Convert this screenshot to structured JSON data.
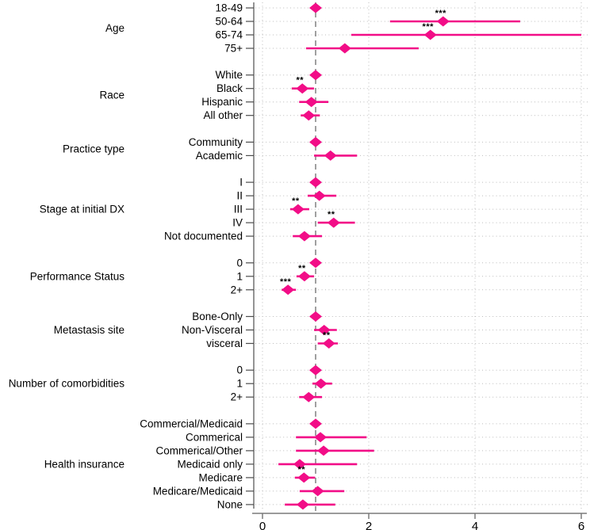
{
  "chart_data": {
    "type": "forest",
    "title": "",
    "xlabel": "",
    "ylabel": "",
    "x_ticks": [
      0,
      2,
      4,
      6
    ],
    "x_range": [
      0,
      6
    ],
    "reference_line_x": 1,
    "legend": "none",
    "grid": "dotted horizontal per row; dotted vertical at 0,2,4,6",
    "marker": "diamond with horizontal CI line",
    "colors": {
      "marker": "#F20D87",
      "reference_dash": "#8f8f8f",
      "grid_dots": "#bcbcbc",
      "axis": "#7a7a7a",
      "category_axis": "#4d4d4d",
      "text": "#000000"
    },
    "groups": [
      {
        "label": "Age",
        "rows": [
          {
            "label": "18-49",
            "est": 1.0,
            "lo": null,
            "hi": null,
            "sig": "",
            "reference": true
          },
          {
            "label": "50-64",
            "est": 3.4,
            "lo": 2.4,
            "hi": 4.85,
            "sig": "***"
          },
          {
            "label": "65-74",
            "est": 3.16,
            "lo": 1.67,
            "hi": 6.0,
            "sig": "***",
            "hi_clipped_at_axis_max": true
          },
          {
            "label": "75+",
            "est": 1.55,
            "lo": 0.82,
            "hi": 2.94,
            "sig": ""
          }
        ]
      },
      {
        "label": "Race",
        "rows": [
          {
            "label": "White",
            "est": 1.0,
            "lo": null,
            "hi": null,
            "sig": "",
            "reference": true
          },
          {
            "label": "Black",
            "est": 0.75,
            "lo": 0.55,
            "hi": 0.97,
            "sig": "**"
          },
          {
            "label": "Hispanic",
            "est": 0.92,
            "lo": 0.69,
            "hi": 1.24,
            "sig": ""
          },
          {
            "label": "All other",
            "est": 0.87,
            "lo": 0.72,
            "hi": 1.08,
            "sig": ""
          }
        ]
      },
      {
        "label": "Practice type",
        "rows": [
          {
            "label": "Community",
            "est": 1.0,
            "lo": null,
            "hi": null,
            "sig": "",
            "reference": true
          },
          {
            "label": "Academic",
            "est": 1.28,
            "lo": 0.97,
            "hi": 1.78,
            "sig": ""
          }
        ]
      },
      {
        "label": "Stage at initial DX",
        "rows": [
          {
            "label": "I",
            "est": 1.0,
            "lo": null,
            "hi": null,
            "sig": "",
            "reference": true
          },
          {
            "label": "II",
            "est": 1.07,
            "lo": 0.85,
            "hi": 1.39,
            "sig": ""
          },
          {
            "label": "III",
            "est": 0.67,
            "lo": 0.52,
            "hi": 0.88,
            "sig": "**"
          },
          {
            "label": "IV",
            "est": 1.34,
            "lo": 1.04,
            "hi": 1.74,
            "sig": "**"
          },
          {
            "label": "Not documented",
            "est": 0.79,
            "lo": 0.57,
            "hi": 1.12,
            "sig": ""
          }
        ]
      },
      {
        "label": "Performance Status",
        "rows": [
          {
            "label": "0",
            "est": 1.0,
            "lo": null,
            "hi": null,
            "sig": "",
            "reference": true
          },
          {
            "label": "1",
            "est": 0.79,
            "lo": 0.64,
            "hi": 0.97,
            "sig": "**"
          },
          {
            "label": "2+",
            "est": 0.48,
            "lo": 0.36,
            "hi": 0.63,
            "sig": "***"
          }
        ]
      },
      {
        "label": "Metastasis site",
        "rows": [
          {
            "label": "Bone-Only",
            "est": 1.0,
            "lo": null,
            "hi": null,
            "sig": "",
            "reference": true
          },
          {
            "label": "Non-Visceral",
            "est": 1.16,
            "lo": 0.97,
            "hi": 1.4,
            "sig": ""
          },
          {
            "label": "visceral",
            "est": 1.25,
            "lo": 1.04,
            "hi": 1.42,
            "sig": "**"
          }
        ]
      },
      {
        "label": "Number of comorbidities",
        "rows": [
          {
            "label": "0",
            "est": 1.0,
            "lo": null,
            "hi": null,
            "sig": "",
            "reference": true
          },
          {
            "label": "1",
            "est": 1.1,
            "lo": 0.94,
            "hi": 1.31,
            "sig": ""
          },
          {
            "label": "2+",
            "est": 0.87,
            "lo": 0.69,
            "hi": 1.12,
            "sig": ""
          }
        ]
      },
      {
        "label": "Health insurance",
        "rows": [
          {
            "label": "Commercial/Medicaid",
            "est": 1.0,
            "lo": null,
            "hi": null,
            "sig": "",
            "reference": true
          },
          {
            "label": "Commerical",
            "est": 1.09,
            "lo": 0.63,
            "hi": 1.96,
            "sig": ""
          },
          {
            "label": "Commerical/Other",
            "est": 1.15,
            "lo": 0.63,
            "hi": 2.1,
            "sig": ""
          },
          {
            "label": "Medicaid only",
            "est": 0.7,
            "lo": 0.3,
            "hi": 1.78,
            "sig": ""
          },
          {
            "label": "Medicare",
            "est": 0.78,
            "lo": 0.61,
            "hi": 0.99,
            "sig": "**"
          },
          {
            "label": "Medicare/Medicaid",
            "est": 1.04,
            "lo": 0.7,
            "hi": 1.54,
            "sig": ""
          },
          {
            "label": "None",
            "est": 0.76,
            "lo": 0.42,
            "hi": 1.37,
            "sig": ""
          }
        ]
      }
    ]
  }
}
